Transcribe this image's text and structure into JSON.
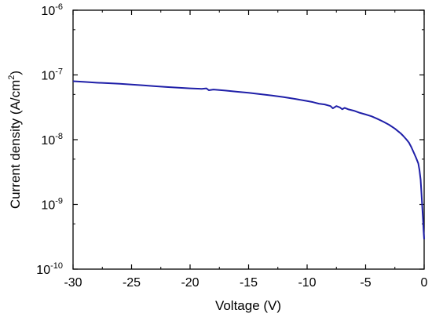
{
  "chart_data": {
    "type": "line",
    "title": "",
    "xlabel": "Voltage (V)",
    "ylabel_prefix": "Current density (A/cm",
    "ylabel_sup": "2",
    "ylabel_suffix": ")",
    "xlim": [
      -30,
      0
    ],
    "ylim": [
      1e-10,
      1e-06
    ],
    "yscale": "log",
    "grid": false,
    "legend": "none",
    "x_ticks": [
      -30,
      -25,
      -20,
      -15,
      -10,
      -5,
      0
    ],
    "x_tick_labels": [
      "-30",
      "-25",
      "-20",
      "-15",
      "-10",
      "-5",
      "0"
    ],
    "y_ticks": [
      {
        "value": 1e-06,
        "base": "10",
        "exp": "-6"
      },
      {
        "value": 1e-07,
        "base": "10",
        "exp": "-7"
      },
      {
        "value": 1e-08,
        "base": "10",
        "exp": "-8"
      },
      {
        "value": 1e-09,
        "base": "10",
        "exp": "-9"
      },
      {
        "value": 1e-10,
        "base": "10",
        "exp": "-10"
      }
    ],
    "colors": {
      "series": "#1f1fa8",
      "axes": "#000000"
    },
    "series": [
      {
        "x": [
          -30,
          -29,
          -28,
          -27,
          -26,
          -25,
          -24,
          -23,
          -22,
          -21,
          -20,
          -19,
          -18.6,
          -18.4,
          -18,
          -17,
          -16,
          -15,
          -14,
          -13,
          -12,
          -11,
          -10,
          -9.5,
          -9,
          -8.5,
          -8,
          -7.8,
          -7.5,
          -7.2,
          -7,
          -6.8,
          -6.5,
          -6,
          -5.5,
          -5,
          -4.5,
          -4,
          -3.5,
          -3,
          -2.5,
          -2,
          -1.8,
          -1.5,
          -1.3,
          -1.1,
          -0.9,
          -0.7,
          -0.5,
          -0.4,
          -0.3,
          -0.25,
          -0.2,
          -0.15,
          -0.1,
          -0.05,
          0
        ],
        "y": [
          8e-08,
          7.8e-08,
          7.6e-08,
          7.45e-08,
          7.3e-08,
          7.1e-08,
          6.9e-08,
          6.7e-08,
          6.5e-08,
          6.35e-08,
          6.2e-08,
          6.1e-08,
          6.2e-08,
          5.8e-08,
          5.95e-08,
          5.75e-08,
          5.5e-08,
          5.3e-08,
          5.05e-08,
          4.8e-08,
          4.55e-08,
          4.25e-08,
          3.95e-08,
          3.8e-08,
          3.6e-08,
          3.5e-08,
          3.3e-08,
          3.05e-08,
          3.3e-08,
          3.15e-08,
          2.95e-08,
          3.1e-08,
          2.95e-08,
          2.8e-08,
          2.6e-08,
          2.45e-08,
          2.3e-08,
          2.1e-08,
          1.9e-08,
          1.7e-08,
          1.48e-08,
          1.25e-08,
          1.15e-08,
          1e-08,
          9e-09,
          7.7e-09,
          6.4e-09,
          5.3e-09,
          4.3e-09,
          3.4e-09,
          2.4e-09,
          1.7e-09,
          1.2e-09,
          8.5e-10,
          6e-10,
          4e-10,
          2.9e-10
        ]
      }
    ]
  }
}
